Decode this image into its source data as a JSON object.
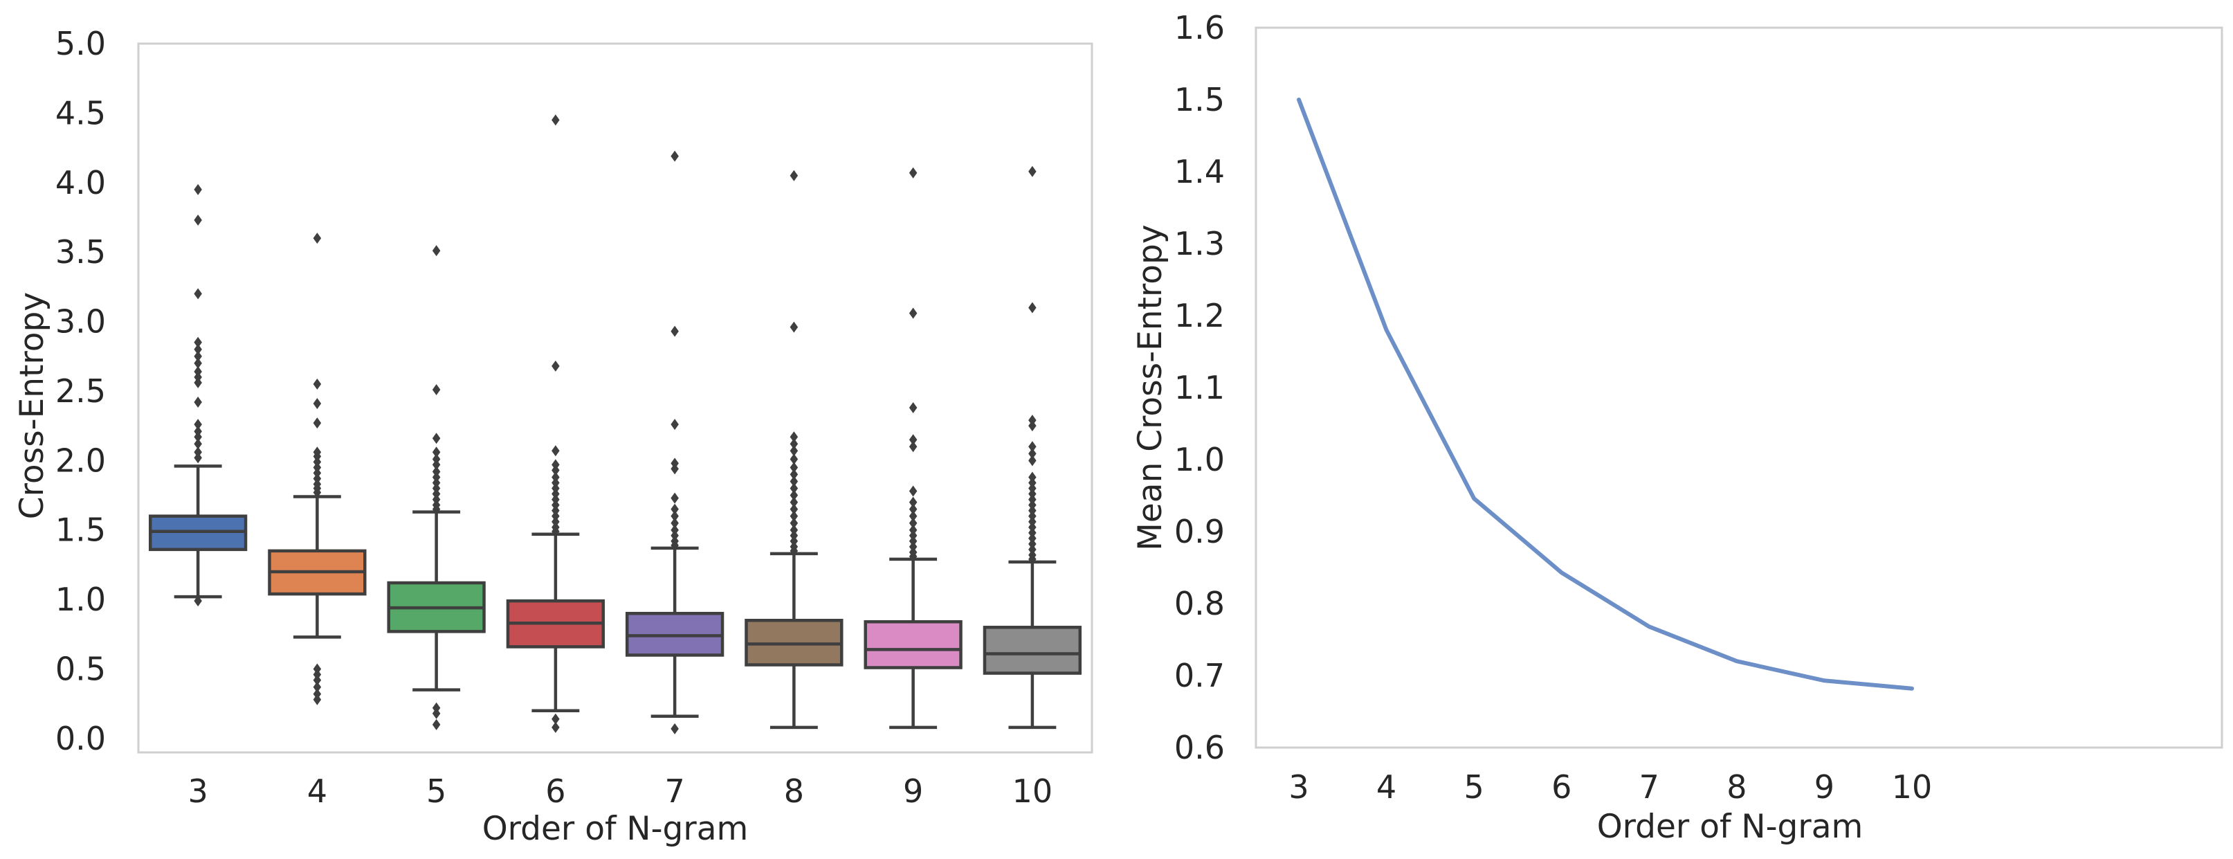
{
  "chart_data": [
    {
      "type": "box",
      "xlabel": "Order of N-gram",
      "ylabel": "Cross-Entropy",
      "ylim": [
        -0.1,
        5.0
      ],
      "yticks": [
        "0.0",
        "0.5",
        "1.0",
        "1.5",
        "2.0",
        "2.5",
        "3.0",
        "3.5",
        "4.0",
        "4.5",
        "5.0"
      ],
      "grid": false,
      "categories": [
        "3",
        "4",
        "5",
        "6",
        "7",
        "8",
        "9",
        "10"
      ],
      "boxes": [
        {
          "category": "3",
          "color": "#4c72b0",
          "whislo": 1.02,
          "q1": 1.36,
          "median": 1.49,
          "q3": 1.6,
          "whishi": 1.96,
          "fliers": [
            0.99,
            2.02,
            2.06,
            2.12,
            2.17,
            2.21,
            2.26,
            2.42,
            2.56,
            2.6,
            2.64,
            2.7,
            2.75,
            2.8,
            2.85,
            3.2,
            3.73,
            3.95
          ]
        },
        {
          "category": "4",
          "color": "#dd8452",
          "whislo": 0.73,
          "q1": 1.04,
          "median": 1.2,
          "q3": 1.35,
          "whishi": 1.74,
          "fliers": [
            0.28,
            0.32,
            0.37,
            0.42,
            0.46,
            0.5,
            1.77,
            1.8,
            1.83,
            1.87,
            1.91,
            1.95,
            1.99,
            2.03,
            2.06,
            2.27,
            2.41,
            2.55,
            3.6
          ]
        },
        {
          "category": "5",
          "color": "#55a868",
          "whislo": 0.35,
          "q1": 0.77,
          "median": 0.94,
          "q3": 1.12,
          "whishi": 1.63,
          "fliers": [
            0.1,
            0.18,
            0.22,
            1.65,
            1.68,
            1.72,
            1.76,
            1.8,
            1.84,
            1.88,
            1.92,
            1.97,
            2.01,
            2.06,
            2.16,
            2.51,
            3.51
          ]
        },
        {
          "category": "6",
          "color": "#c44e52",
          "whislo": 0.2,
          "q1": 0.66,
          "median": 0.83,
          "q3": 0.99,
          "whishi": 1.47,
          "fliers": [
            0.08,
            0.14,
            1.49,
            1.52,
            1.56,
            1.6,
            1.64,
            1.68,
            1.72,
            1.76,
            1.8,
            1.84,
            1.88,
            1.93,
            1.97,
            2.07,
            2.68,
            4.45
          ]
        },
        {
          "category": "7",
          "color": "#8172b3",
          "whislo": 0.16,
          "q1": 0.6,
          "median": 0.74,
          "q3": 0.9,
          "whishi": 1.37,
          "fliers": [
            0.07,
            1.39,
            1.42,
            1.46,
            1.5,
            1.55,
            1.6,
            1.65,
            1.73,
            1.94,
            1.98,
            2.26,
            2.93,
            4.19
          ]
        },
        {
          "category": "8",
          "color": "#937860",
          "whislo": 0.08,
          "q1": 0.53,
          "median": 0.68,
          "q3": 0.85,
          "whishi": 1.33,
          "fliers": [
            1.35,
            1.38,
            1.42,
            1.46,
            1.5,
            1.55,
            1.6,
            1.65,
            1.7,
            1.75,
            1.8,
            1.85,
            1.9,
            1.95,
            2.01,
            2.07,
            2.12,
            2.17,
            2.96,
            4.05
          ]
        },
        {
          "category": "9",
          "color": "#da8bc3",
          "whislo": 0.08,
          "q1": 0.51,
          "median": 0.64,
          "q3": 0.84,
          "whishi": 1.29,
          "fliers": [
            1.31,
            1.34,
            1.38,
            1.42,
            1.46,
            1.5,
            1.55,
            1.6,
            1.65,
            1.7,
            1.78,
            2.1,
            2.15,
            2.38,
            3.06,
            4.07
          ]
        },
        {
          "category": "10",
          "color": "#8c8c8c",
          "whislo": 0.08,
          "q1": 0.47,
          "median": 0.61,
          "q3": 0.8,
          "whishi": 1.27,
          "fliers": [
            1.29,
            1.32,
            1.36,
            1.4,
            1.44,
            1.48,
            1.52,
            1.56,
            1.6,
            1.64,
            1.68,
            1.72,
            1.76,
            1.8,
            1.84,
            1.88,
            2.0,
            2.05,
            2.1,
            2.25,
            2.29,
            3.1,
            4.08
          ]
        }
      ]
    },
    {
      "type": "line",
      "xlabel": "Order of N-gram",
      "ylabel": "Mean Cross-Entropy",
      "ylim": [
        0.6,
        1.6
      ],
      "yticks": [
        "0.6",
        "0.7",
        "0.8",
        "0.9",
        "1.0",
        "1.1",
        "1.2",
        "1.3",
        "1.4",
        "1.5",
        "1.6"
      ],
      "grid": false,
      "color": "#6d8fc7",
      "x": [
        "3",
        "4",
        "5",
        "6",
        "7",
        "8",
        "9",
        "10"
      ],
      "values": [
        1.5,
        1.18,
        0.946,
        0.843,
        0.768,
        0.72,
        0.693,
        0.682
      ]
    }
  ]
}
